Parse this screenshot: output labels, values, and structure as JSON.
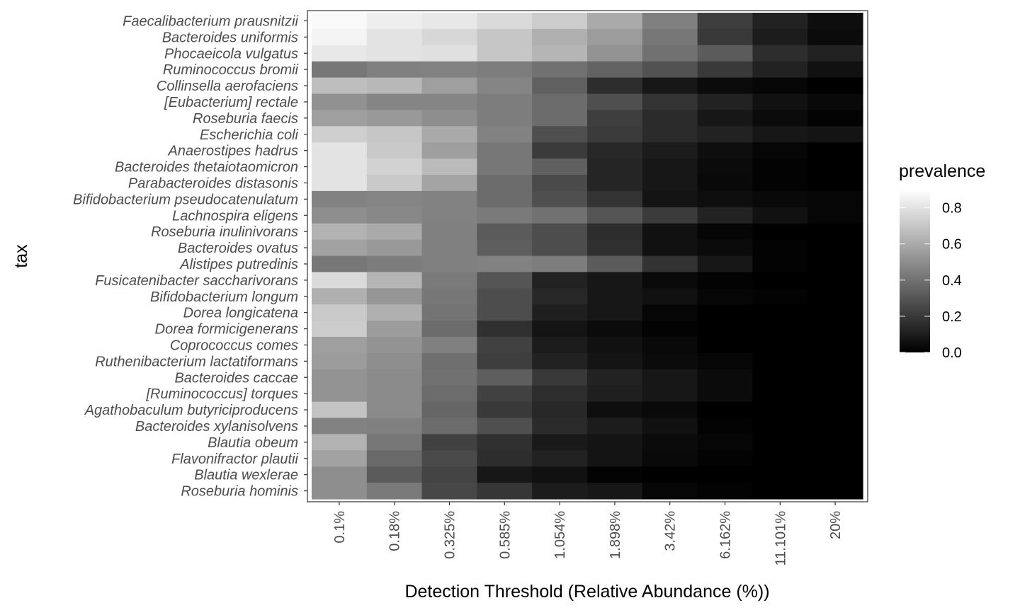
{
  "chart_data": {
    "type": "heatmap",
    "title": "",
    "xlabel": "Detection Threshold (Relative Abundance (%))",
    "ylabel": "tax",
    "legend_title": "prevalence",
    "legend_placement": "right",
    "color_scale": {
      "low": "#000000",
      "high": "#ffffff",
      "range": [
        0,
        0.9
      ]
    },
    "legend_ticks": [
      {
        "value": 0.0,
        "label": "0.0"
      },
      {
        "value": 0.2,
        "label": "0.2"
      },
      {
        "value": 0.4,
        "label": "0.4"
      },
      {
        "value": 0.6,
        "label": "0.6"
      },
      {
        "value": 0.8,
        "label": "0.8"
      }
    ],
    "grid": true,
    "x": [
      "0.1%",
      "0.18%",
      "0.325%",
      "0.585%",
      "1.054%",
      "1.898%",
      "3.42%",
      "6.162%",
      "11.101%",
      "20%"
    ],
    "y": [
      "Faecalibacterium prausnitzii",
      "Bacteroides uniformis",
      "Phocaeicola vulgatus",
      "Ruminococcus bromii",
      "Collinsella aerofaciens",
      "[Eubacterium] rectale",
      "Roseburia faecis",
      "Escherichia coli",
      "Anaerostipes hadrus",
      "Bacteroides thetaiotaomicron",
      "Parabacteroides distasonis",
      "Bifidobacterium pseudocatenulatum",
      "Lachnospira eligens",
      "Roseburia inulinivorans",
      "Bacteroides ovatus",
      "Alistipes putredinis",
      "Fusicatenibacter saccharivorans",
      "Bifidobacterium longum",
      "Dorea longicatena",
      "Dorea formicigenerans",
      "Coprococcus comes",
      "Ruthenibacterium lactatiformans",
      "Bacteroides caccae",
      "[Ruminococcus] torques",
      "Agathobaculum butyriciproducens",
      "Bacteroides xylanisolvens",
      "Blautia obeum",
      "Flavonifractor plautii",
      "Blautia wexlerae",
      "Roseburia hominis"
    ],
    "values": [
      [
        0.88,
        0.84,
        0.82,
        0.77,
        0.72,
        0.6,
        0.45,
        0.22,
        0.12,
        0.05
      ],
      [
        0.86,
        0.8,
        0.76,
        0.7,
        0.62,
        0.55,
        0.42,
        0.2,
        0.1,
        0.04
      ],
      [
        0.82,
        0.8,
        0.79,
        0.7,
        0.64,
        0.52,
        0.4,
        0.32,
        0.16,
        0.12
      ],
      [
        0.42,
        0.45,
        0.46,
        0.44,
        0.4,
        0.35,
        0.29,
        0.2,
        0.12,
        0.06
      ],
      [
        0.67,
        0.65,
        0.56,
        0.47,
        0.34,
        0.16,
        0.08,
        0.04,
        0.02,
        0.0
      ],
      [
        0.51,
        0.47,
        0.47,
        0.44,
        0.38,
        0.28,
        0.18,
        0.12,
        0.06,
        0.03
      ],
      [
        0.56,
        0.54,
        0.5,
        0.44,
        0.38,
        0.22,
        0.15,
        0.08,
        0.04,
        0.01
      ],
      [
        0.73,
        0.7,
        0.6,
        0.46,
        0.28,
        0.21,
        0.15,
        0.12,
        0.08,
        0.07
      ],
      [
        0.8,
        0.71,
        0.56,
        0.42,
        0.21,
        0.14,
        0.1,
        0.05,
        0.02,
        0.0
      ],
      [
        0.8,
        0.74,
        0.66,
        0.42,
        0.34,
        0.13,
        0.08,
        0.04,
        0.01,
        0.0
      ],
      [
        0.8,
        0.71,
        0.58,
        0.38,
        0.26,
        0.13,
        0.08,
        0.03,
        0.01,
        0.0
      ],
      [
        0.46,
        0.47,
        0.46,
        0.38,
        0.28,
        0.18,
        0.07,
        0.05,
        0.03,
        0.02
      ],
      [
        0.5,
        0.48,
        0.46,
        0.43,
        0.4,
        0.3,
        0.21,
        0.12,
        0.06,
        0.02
      ],
      [
        0.63,
        0.6,
        0.45,
        0.32,
        0.27,
        0.16,
        0.06,
        0.02,
        0.0,
        0.0
      ],
      [
        0.57,
        0.54,
        0.45,
        0.33,
        0.27,
        0.17,
        0.06,
        0.04,
        0.01,
        0.0
      ],
      [
        0.42,
        0.44,
        0.45,
        0.46,
        0.44,
        0.32,
        0.18,
        0.08,
        0.01,
        0.0
      ],
      [
        0.77,
        0.64,
        0.43,
        0.3,
        0.12,
        0.08,
        0.03,
        0.01,
        0.0,
        0.0
      ],
      [
        0.62,
        0.53,
        0.42,
        0.27,
        0.14,
        0.08,
        0.06,
        0.02,
        0.01,
        0.0
      ],
      [
        0.71,
        0.62,
        0.41,
        0.27,
        0.11,
        0.08,
        0.02,
        0.0,
        0.0,
        0.0
      ],
      [
        0.72,
        0.55,
        0.38,
        0.17,
        0.07,
        0.04,
        0.01,
        0.0,
        0.0,
        0.0
      ],
      [
        0.56,
        0.52,
        0.45,
        0.23,
        0.1,
        0.06,
        0.03,
        0.0,
        0.0,
        0.0
      ],
      [
        0.55,
        0.5,
        0.39,
        0.22,
        0.12,
        0.07,
        0.04,
        0.02,
        0.0,
        0.0
      ],
      [
        0.52,
        0.49,
        0.4,
        0.33,
        0.2,
        0.12,
        0.08,
        0.04,
        0.0,
        0.0
      ],
      [
        0.52,
        0.49,
        0.38,
        0.23,
        0.16,
        0.11,
        0.08,
        0.04,
        0.0,
        0.0
      ],
      [
        0.69,
        0.49,
        0.36,
        0.2,
        0.14,
        0.05,
        0.03,
        0.0,
        0.0,
        0.0
      ],
      [
        0.46,
        0.45,
        0.38,
        0.28,
        0.15,
        0.1,
        0.06,
        0.01,
        0.0,
        0.0
      ],
      [
        0.63,
        0.42,
        0.23,
        0.17,
        0.09,
        0.07,
        0.04,
        0.02,
        0.0,
        0.0
      ],
      [
        0.57,
        0.37,
        0.26,
        0.16,
        0.12,
        0.07,
        0.03,
        0.01,
        0.0,
        0.0
      ],
      [
        0.5,
        0.32,
        0.24,
        0.08,
        0.06,
        0.01,
        0.0,
        0.0,
        0.0,
        0.0
      ],
      [
        0.5,
        0.43,
        0.25,
        0.19,
        0.1,
        0.08,
        0.02,
        0.01,
        0.0,
        0.0
      ]
    ]
  }
}
